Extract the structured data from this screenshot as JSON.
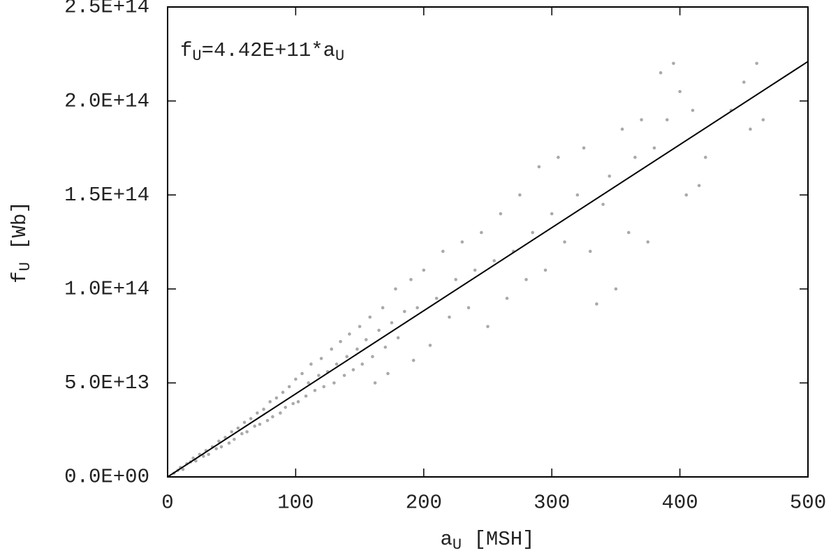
{
  "chart_data": {
    "type": "scatter",
    "annotation": [
      {
        "text": "f"
      },
      {
        "text": "U",
        "sub": true
      },
      {
        "text": "=4.42E+11*a"
      },
      {
        "text": "U",
        "sub": true
      }
    ],
    "x_label": [
      {
        "text": "a"
      },
      {
        "text": "U",
        "sub": true
      },
      {
        "text": " [MSH]"
      }
    ],
    "y_label": [
      {
        "text": "f"
      },
      {
        "text": "U",
        "sub": true
      },
      {
        "text": " [Wb]"
      }
    ],
    "xlim": [
      0,
      500
    ],
    "xticks": [
      0,
      100,
      200,
      300,
      400,
      500
    ],
    "ylim": [
      0,
      250000000000000.0
    ],
    "yticks": [
      {
        "value": 0,
        "label": "0.0E+00"
      },
      {
        "value": 50000000000000.0,
        "label": "5.0E+13"
      },
      {
        "value": 100000000000000.0,
        "label": "1.0E+14"
      },
      {
        "value": 150000000000000.0,
        "label": "1.5E+14"
      },
      {
        "value": 200000000000000.0,
        "label": "2.0E+14"
      },
      {
        "value": 250000000000000.0,
        "label": "2.5E+14"
      }
    ],
    "series": [
      {
        "style": "points",
        "color": "#a9a9a9",
        "x": [
          5,
          8,
          10,
          12,
          15,
          18,
          20,
          22,
          25,
          28,
          30,
          32,
          35,
          38,
          40,
          42,
          45,
          48,
          50,
          52,
          55,
          58,
          60,
          62,
          65,
          68,
          70,
          72,
          75,
          78,
          80,
          82,
          85,
          88,
          90,
          92,
          95,
          98,
          100,
          102,
          105,
          108,
          110,
          112,
          115,
          118,
          120,
          122,
          125,
          128,
          130,
          132,
          135,
          138,
          140,
          142,
          145,
          148,
          150,
          152,
          155,
          158,
          160,
          162,
          165,
          168,
          170,
          172,
          175,
          178,
          180,
          185,
          190,
          192,
          195,
          200,
          205,
          210,
          215,
          220,
          225,
          230,
          235,
          240,
          245,
          250,
          255,
          260,
          265,
          270,
          275,
          280,
          285,
          290,
          295,
          300,
          305,
          310,
          320,
          325,
          330,
          335,
          340,
          345,
          350,
          355,
          360,
          365,
          370,
          375,
          380,
          385,
          390,
          395,
          400,
          405,
          410,
          415,
          420,
          440,
          450,
          455,
          460,
          465
        ],
        "values": [
          2000000000000.0,
          3500000000000.0,
          5000000000000.0,
          4000000000000.0,
          7000000000000.0,
          8000000000000.0,
          10000000000000.0,
          8500000000000.0,
          12000000000000.0,
          11000000000000.0,
          14000000000000.0,
          12000000000000.0,
          16000000000000.0,
          15000000000000.0,
          19000000000000.0,
          16000000000000.0,
          21000000000000.0,
          18000000000000.0,
          24000000000000.0,
          20000000000000.0,
          26000000000000.0,
          23000000000000.0,
          29000000000000.0,
          24000000000000.0,
          31000000000000.0,
          27000000000000.0,
          34000000000000.0,
          28000000000000.0,
          36000000000000.0,
          30000000000000.0,
          40000000000000.0,
          32000000000000.0,
          42000000000000.0,
          34000000000000.0,
          45000000000000.0,
          37000000000000.0,
          48000000000000.0,
          39000000000000.0,
          52000000000000.0,
          40000000000000.0,
          55000000000000.0,
          43000000000000.0,
          50000000000000.0,
          60000000000000.0,
          46000000000000.0,
          54000000000000.0,
          63000000000000.0,
          48000000000000.0,
          56000000000000.0,
          68000000000000.0,
          50000000000000.0,
          60000000000000.0,
          72000000000000.0,
          54000000000000.0,
          64000000000000.0,
          76000000000000.0,
          57000000000000.0,
          68000000000000.0,
          80000000000000.0,
          60000000000000.0,
          73000000000000.0,
          85000000000000.0,
          64000000000000.0,
          50000000000000.0,
          78000000000000.0,
          90000000000000.0,
          69000000000000.0,
          55000000000000.0,
          82000000000000.0,
          100000000000000.0,
          74000000000000.0,
          88000000000000.0,
          105000000000000.0,
          62000000000000.0,
          90000000000000.0,
          110000000000000.0,
          70000000000000.0,
          95000000000000.0,
          120000000000000.0,
          85000000000000.0,
          105000000000000.0,
          125000000000000.0,
          90000000000000.0,
          110000000000000.0,
          130000000000000.0,
          80000000000000.0,
          115000000000000.0,
          140000000000000.0,
          95000000000000.0,
          120000000000000.0,
          150000000000000.0,
          105000000000000.0,
          130000000000000.0,
          165000000000000.0,
          110000000000000.0,
          140000000000000.0,
          170000000000000.0,
          125000000000000.0,
          150000000000000.0,
          175000000000000.0,
          120000000000000.0,
          92000000000000.0,
          145000000000000.0,
          160000000000000.0,
          100000000000000.0,
          185000000000000.0,
          130000000000000.0,
          170000000000000.0,
          190000000000000.0,
          125000000000000.0,
          175000000000000.0,
          215000000000000.0,
          190000000000000.0,
          220000000000000.0,
          205000000000000.0,
          150000000000000.0,
          195000000000000.0,
          155000000000000.0,
          170000000000000.0,
          195000000000000.0,
          210000000000000.0,
          185000000000000.0,
          220000000000000.0,
          190000000000000.0
        ]
      },
      {
        "style": "line",
        "color": "#000000",
        "x": [
          0,
          500
        ],
        "values": [
          0,
          221000000000000.0
        ]
      }
    ]
  }
}
